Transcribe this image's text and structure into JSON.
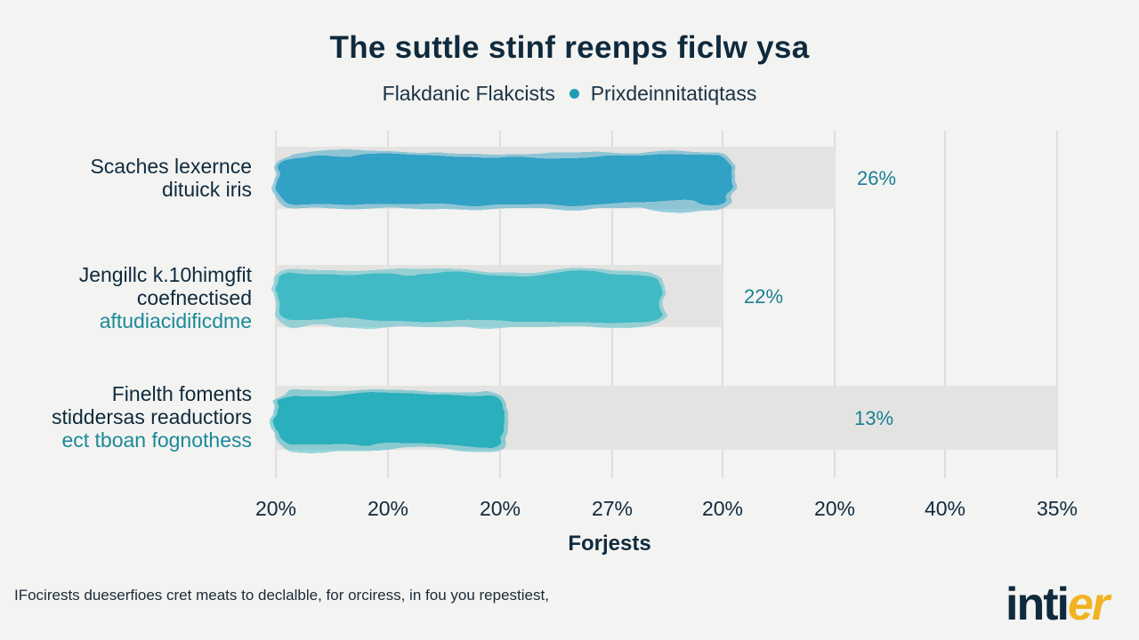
{
  "chart_data": {
    "type": "bar",
    "orientation": "horizontal",
    "title": "The suttle stinf reenps ficlw ysa",
    "legend": [
      "Flakdanic Flakcists",
      "Prixdeinnitatiqtass"
    ],
    "legend_position": "top",
    "categories": [
      [
        "Scaches lexernce",
        "dituick iris"
      ],
      [
        "Jengillc k.10himgfit",
        "coefnectised",
        "aftudiacidificdme"
      ],
      [
        "Finelth foments",
        "stiddersas reaductiors",
        "ect tboan fognothess"
      ]
    ],
    "values": [
      26,
      22,
      13
    ],
    "value_labels": [
      "26%",
      "22%",
      "13%"
    ],
    "x_tick_labels": [
      "20%",
      "20%",
      "20%",
      "27%",
      "20%",
      "20%",
      "40%",
      "35%"
    ],
    "xlabel": "Forjests",
    "grid": true,
    "colors": [
      "#2a9fc4",
      "#3bb9c4",
      "#22adbb"
    ]
  },
  "footnote": "IFocirests dueserfioes cret meats to declalble, for orciress, in fou you repestiest,",
  "brand": {
    "main": "inti",
    "accent": "er"
  }
}
